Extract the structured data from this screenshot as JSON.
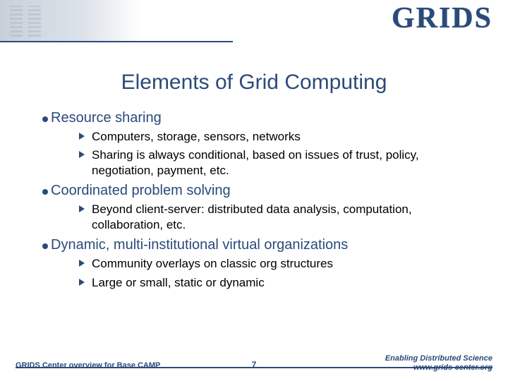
{
  "logo": "GRIDS",
  "title": "Elements of Grid Computing",
  "bullets": [
    {
      "text": "Resource sharing",
      "subs": [
        "Computers, storage, sensors, networks",
        "Sharing is always conditional, based on issues of trust, policy, negotiation, payment, etc."
      ]
    },
    {
      "text": "Coordinated problem solving",
      "subs": [
        "Beyond client-server: distributed data analysis, computation, collaboration, etc."
      ]
    },
    {
      "text": "Dynamic, multi-institutional virtual organizations",
      "subs": [
        "Community overlays on classic org structures",
        "Large or small, static or dynamic"
      ]
    }
  ],
  "footer": {
    "left": "GRIDS Center overview for Base CAMP",
    "page": "7",
    "right1": "Enabling Distributed Science",
    "right2": "www.grids-center.org"
  },
  "colors": {
    "accent": "#2b4a7a",
    "bg": "#ffffff"
  }
}
